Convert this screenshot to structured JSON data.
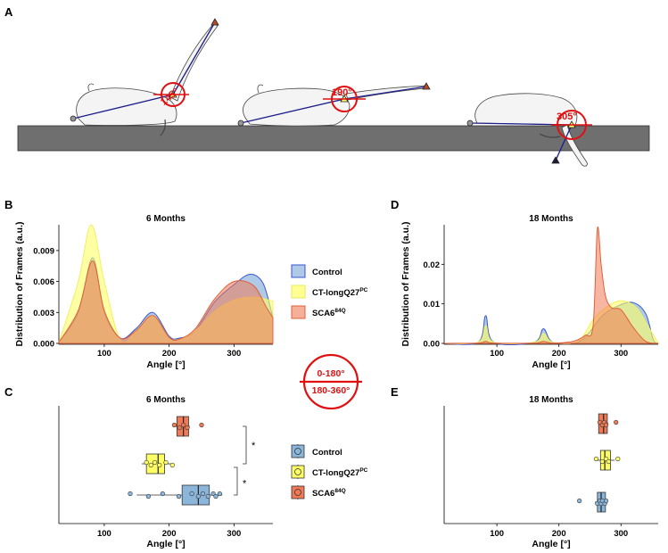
{
  "panel_labels": {
    "a": "A",
    "b": "B",
    "c": "C",
    "d": "D",
    "e": "E"
  },
  "illustration": {
    "angles": [
      "145°",
      "190°",
      "305°"
    ],
    "legend_top": "0-180°",
    "legend_bottom": "180-360°"
  },
  "colors": {
    "control": "#6e9fd2",
    "ct": "#ffff66",
    "sca6": "#f07a55",
    "angle_red": "#e01010",
    "platform": "#6f6f6f",
    "limb_line": "#1c1c8a"
  },
  "legend": {
    "control": "Control",
    "ct_base": "CT-longQ27",
    "ct_sup": "PC",
    "sca6_base": "SCA6",
    "sca6_sup": "84Q"
  },
  "chart_data": [
    {
      "id": "B",
      "type": "area",
      "title": "6 Months",
      "xlabel": "Angle [°]",
      "ylabel": "Distribution of Frames (a.u.)",
      "xlim": [
        30,
        360
      ],
      "ylim": [
        0,
        0.0115
      ],
      "xticks": [
        100,
        200,
        300
      ],
      "yticks": [
        0.0,
        0.003,
        0.006,
        0.009
      ],
      "ytick_labels": [
        "0.000",
        "0.003",
        "0.006",
        "0.009"
      ],
      "series": [
        {
          "name": "Control",
          "points": [
            [
              30,
              0.0001
            ],
            [
              60,
              0.003
            ],
            [
              82,
              0.0083
            ],
            [
              100,
              0.003
            ],
            [
              125,
              0.0005
            ],
            [
              150,
              0.0015
            ],
            [
              175,
              0.003
            ],
            [
              200,
              0.0007
            ],
            [
              215,
              0.0005
            ],
            [
              240,
              0.0012
            ],
            [
              270,
              0.004
            ],
            [
              300,
              0.0057
            ],
            [
              325,
              0.0067
            ],
            [
              345,
              0.0058
            ],
            [
              360,
              0.0025
            ]
          ]
        },
        {
          "name": "CT-longQ27PC",
          "points": [
            [
              30,
              0.0001
            ],
            [
              60,
              0.006
            ],
            [
              80,
              0.0115
            ],
            [
              100,
              0.006
            ],
            [
              125,
              0.0003
            ],
            [
              150,
              0.0013
            ],
            [
              175,
              0.0027
            ],
            [
              200,
              0.0006
            ],
            [
              215,
              0.0004
            ],
            [
              240,
              0.0012
            ],
            [
              270,
              0.0031
            ],
            [
              300,
              0.0042
            ],
            [
              330,
              0.0045
            ],
            [
              360,
              0.0041
            ]
          ]
        },
        {
          "name": "SCA6 84Q",
          "points": [
            [
              30,
              0.0001
            ],
            [
              60,
              0.0032
            ],
            [
              82,
              0.008
            ],
            [
              100,
              0.0032
            ],
            [
              125,
              0.0005
            ],
            [
              150,
              0.0013
            ],
            [
              175,
              0.0027
            ],
            [
              200,
              0.0006
            ],
            [
              215,
              0.0004
            ],
            [
              240,
              0.0014
            ],
            [
              270,
              0.0043
            ],
            [
              300,
              0.006
            ],
            [
              330,
              0.0056
            ],
            [
              350,
              0.0035
            ],
            [
              360,
              0.0025
            ]
          ]
        }
      ]
    },
    {
      "id": "D",
      "type": "area",
      "title": "18 Months",
      "xlabel": "Angle [°]",
      "ylabel": "Distribution of Frames (a.u.)",
      "xlim": [
        15,
        360
      ],
      "ylim": [
        0,
        0.03
      ],
      "xticks": [
        100,
        200,
        300
      ],
      "yticks": [
        0.0,
        0.01,
        0.02
      ],
      "ytick_labels": [
        "0.00",
        "0.01",
        "0.02"
      ],
      "series": [
        {
          "name": "Control",
          "points": [
            [
              15,
              0
            ],
            [
              70,
              0.0003
            ],
            [
              82,
              0.007
            ],
            [
              95,
              0.0003
            ],
            [
              160,
              0.0003
            ],
            [
              175,
              0.0037
            ],
            [
              190,
              0.0003
            ],
            [
              230,
              0.0003
            ],
            [
              250,
              0.003
            ],
            [
              270,
              0.007
            ],
            [
              295,
              0.0095
            ],
            [
              320,
              0.0103
            ],
            [
              340,
              0.0075
            ],
            [
              352,
              0.001
            ],
            [
              360,
              0
            ]
          ]
        },
        {
          "name": "CT-longQ27PC",
          "points": [
            [
              15,
              0
            ],
            [
              70,
              0.0003
            ],
            [
              82,
              0.0045
            ],
            [
              95,
              0.0003
            ],
            [
              160,
              0.0003
            ],
            [
              175,
              0.0025
            ],
            [
              190,
              0.0003
            ],
            [
              230,
              0.0005
            ],
            [
              255,
              0.006
            ],
            [
              275,
              0.009
            ],
            [
              300,
              0.0108
            ],
            [
              325,
              0.009
            ],
            [
              345,
              0.004
            ],
            [
              360,
              0
            ]
          ]
        },
        {
          "name": "SCA6 84Q",
          "points": [
            [
              15,
              0
            ],
            [
              70,
              0.0001
            ],
            [
              82,
              0.0005
            ],
            [
              95,
              0.0001
            ],
            [
              160,
              0.0001
            ],
            [
              175,
              0.0005
            ],
            [
              190,
              0.0001
            ],
            [
              222,
              0.0005
            ],
            [
              242,
              0.002
            ],
            [
              255,
              0.0045
            ],
            [
              262,
              0.029
            ],
            [
              268,
              0.02
            ],
            [
              275,
              0.012
            ],
            [
              285,
              0.009
            ],
            [
              300,
              0.0085
            ],
            [
              320,
              0.004
            ],
            [
              340,
              0.0005
            ],
            [
              360,
              0
            ]
          ]
        }
      ]
    },
    {
      "id": "C",
      "type": "box",
      "title": "6 Months",
      "xlabel": "Angle [°]",
      "xlim": [
        30,
        360
      ],
      "xticks": [
        100,
        200,
        300
      ],
      "significance": [
        "*",
        "*"
      ],
      "groups": [
        {
          "name": "Control",
          "q1": 220,
          "median": 245,
          "q3": 262,
          "whisker_low": 150,
          "whisker_high": 282,
          "points": [
            140,
            168,
            190,
            215,
            235,
            245,
            252,
            260,
            268,
            272,
            278
          ]
        },
        {
          "name": "CT-longQ27PC",
          "q1": 165,
          "median": 183,
          "q3": 193,
          "whisker_low": 158,
          "whisker_high": 208,
          "points": [
            165,
            172,
            178,
            185,
            195,
            205
          ]
        },
        {
          "name": "SCA6 84Q",
          "q1": 212,
          "median": 222,
          "q3": 230,
          "whisker_low": 208,
          "whisker_high": 232,
          "points": [
            208,
            216,
            222,
            228,
            250
          ]
        }
      ]
    },
    {
      "id": "E",
      "type": "box",
      "title": "18 Months",
      "xlabel": "Angle [°]",
      "xlim": [
        15,
        360
      ],
      "xticks": [
        100,
        200,
        300
      ],
      "groups": [
        {
          "name": "Control",
          "q1": 262,
          "median": 268,
          "q3": 275,
          "whisker_low": 258,
          "whisker_high": 277,
          "points": [
            233,
            262,
            266,
            268,
            270,
            274,
            276
          ]
        },
        {
          "name": "CT-longQ27PC",
          "q1": 267,
          "median": 274,
          "q3": 283,
          "whisker_low": 260,
          "whisker_high": 290,
          "points": [
            260,
            270,
            276,
            280,
            295
          ]
        },
        {
          "name": "SCA6 84Q",
          "q1": 264,
          "median": 272,
          "q3": 278,
          "whisker_low": 264,
          "whisker_high": 280,
          "points": [
            266,
            270,
            273,
            276,
            292
          ]
        }
      ]
    }
  ]
}
